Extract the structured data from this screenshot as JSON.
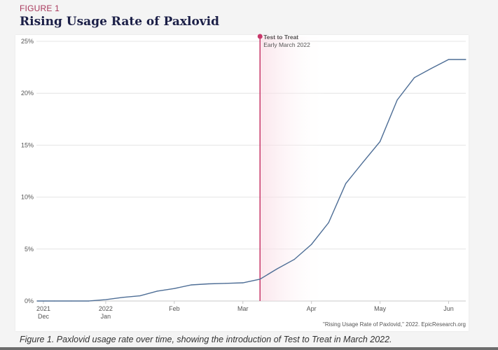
{
  "figure_label": "FIGURE 1",
  "caption": "Figure 1. Paxlovid usage rate over time, showing the introduction of Test to Treat in March 2022.",
  "source": "\"Rising Usage Rate of Paxlovid,\" 2022. EpicResearch.org",
  "colors": {
    "line": "#4e6e96",
    "annotation": "#c8386a",
    "title": "#1b1f47",
    "figure_label": "#a8365a"
  },
  "chart_data": {
    "type": "line",
    "title": "Rising Usage Rate of Paxlovid",
    "xlabel": "",
    "ylabel": "",
    "ylim": [
      0,
      25
    ],
    "yticks": [
      "0%",
      "5%",
      "10%",
      "15%",
      "20%",
      "25%"
    ],
    "ytick_values": [
      0,
      5,
      10,
      15,
      20,
      25
    ],
    "grid": true,
    "x": [
      "2021-12-06",
      "2021-12-13",
      "2021-12-20",
      "2021-12-27",
      "2022-01-03",
      "2022-01-10",
      "2022-01-17",
      "2022-01-24",
      "2022-01-31",
      "2022-02-07",
      "2022-02-14",
      "2022-02-21",
      "2022-02-28",
      "2022-03-07",
      "2022-03-14",
      "2022-03-21",
      "2022-03-28",
      "2022-04-04",
      "2022-04-11",
      "2022-04-18",
      "2022-04-25",
      "2022-05-02",
      "2022-05-09",
      "2022-05-16",
      "2022-05-23",
      "2022-05-30"
    ],
    "series": [
      {
        "values": [
          0,
          0,
          0,
          0,
          0.13,
          0.35,
          0.5,
          0.95,
          1.2,
          1.55,
          1.65,
          1.7,
          1.75,
          2.1,
          3.1,
          4.0,
          5.45,
          7.55,
          11.3,
          13.35,
          15.35,
          19.35,
          21.5,
          22.4,
          23.25,
          23.25
        ]
      }
    ],
    "xticks": [
      {
        "at": "2021-12-06",
        "line1": "2021",
        "line2": "Dec"
      },
      {
        "at": "2022-01-03",
        "line1": "2022",
        "line2": "Jan"
      },
      {
        "at": "2022-01-31",
        "line1": "Feb",
        "line2": ""
      },
      {
        "at": "2022-02-28",
        "line1": "Mar",
        "line2": ""
      },
      {
        "at": "2022-03-28",
        "line1": "Apr",
        "line2": ""
      },
      {
        "at": "2022-04-25",
        "line1": "May",
        "line2": ""
      },
      {
        "at": "2022-05-23",
        "line1": "Jun",
        "line2": ""
      }
    ],
    "annotation": {
      "at": "2022-03-07",
      "label": "Test to Treat",
      "sublabel": "Early March 2022"
    }
  }
}
